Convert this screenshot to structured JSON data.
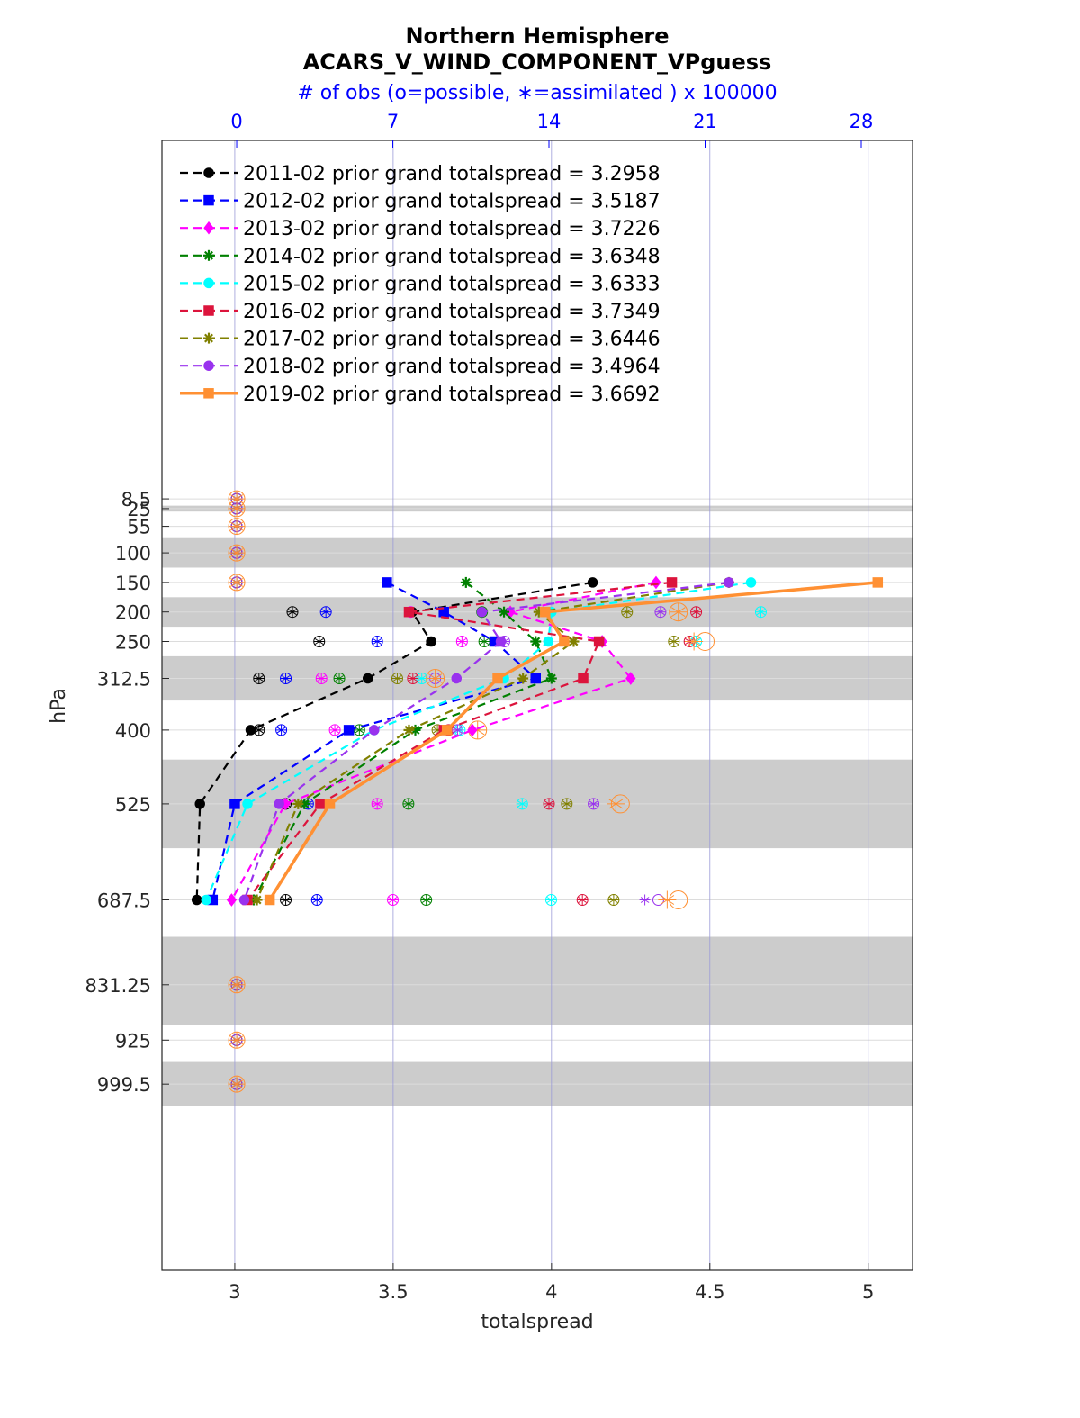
{
  "chart_data": {
    "type": "line",
    "title": "Northern Hemisphere",
    "subtitle": "ACARS_V_WIND_COMPONENT_VPguess",
    "top_axis_label": "# of obs (o=possible, ∗=assimilated ) x 100000",
    "xlabel": "totalspread",
    "ylabel": "hPa",
    "xlim": [
      2.77,
      5.14
    ],
    "xticks": [
      "3",
      "3.5",
      "4",
      "4.5",
      "5"
    ],
    "top_xlim": [
      -3.35,
      30.3
    ],
    "top_xticks": [
      "0",
      "7",
      "14",
      "21",
      "28"
    ],
    "y_reversed": true,
    "levels": [
      8.5,
      25,
      55,
      100,
      150,
      200,
      250,
      312.5,
      400,
      525,
      687.5,
      831.25,
      925,
      999.5
    ],
    "level_labels": [
      "8.5",
      "25",
      "55",
      "100",
      "150",
      "200",
      "250",
      "312.5",
      "400",
      "525",
      "687.5",
      "831.25",
      "925",
      "999.5"
    ],
    "shaded_bands": [
      [
        20,
        30
      ],
      [
        75,
        125
      ],
      [
        175,
        225
      ],
      [
        275,
        350
      ],
      [
        450,
        600
      ],
      [
        750,
        900
      ],
      [
        962,
        1037
      ]
    ],
    "grid": true,
    "legend_location": "top-left",
    "series": [
      {
        "name": "2011-02 prior grand totalspread = 3.2958",
        "color": "#000000",
        "marker": "circle",
        "levels": [
          150,
          200,
          250,
          312.5,
          400,
          525,
          687.5
        ],
        "values": [
          4.13,
          3.56,
          3.62,
          3.42,
          3.05,
          2.89,
          2.88
        ]
      },
      {
        "name": "2012-02 prior grand totalspread = 3.5187",
        "color": "#0000ff",
        "marker": "square",
        "levels": [
          150,
          200,
          250,
          312.5,
          400,
          525,
          687.5
        ],
        "values": [
          3.48,
          3.66,
          3.82,
          3.95,
          3.36,
          3.0,
          2.93
        ]
      },
      {
        "name": "2013-02 prior grand totalspread = 3.7226",
        "color": "#ff00ff",
        "marker": "diamond",
        "levels": [
          150,
          200,
          250,
          312.5,
          400,
          525,
          687.5
        ],
        "values": [
          4.33,
          3.87,
          4.16,
          4.25,
          3.75,
          3.16,
          2.99
        ]
      },
      {
        "name": "2014-02 prior grand totalspread = 3.6348",
        "color": "#008000",
        "marker": "star",
        "levels": [
          150,
          200,
          250,
          312.5,
          400,
          525,
          687.5
        ],
        "values": [
          3.73,
          3.85,
          3.95,
          4.0,
          3.57,
          3.22,
          3.06
        ]
      },
      {
        "name": "2015-02 prior grand totalspread = 3.6333",
        "color": "#00ffff",
        "marker": "circle",
        "levels": [
          150,
          200,
          250,
          312.5,
          400,
          525,
          687.5
        ],
        "values": [
          4.63,
          4.0,
          3.99,
          3.85,
          3.44,
          3.04,
          2.91
        ]
      },
      {
        "name": "2016-02 prior grand totalspread = 3.7349",
        "color": "#dc143c",
        "marker": "square",
        "levels": [
          150,
          200,
          250,
          312.5,
          400,
          525,
          687.5
        ],
        "values": [
          4.38,
          3.55,
          4.15,
          4.1,
          3.66,
          3.27,
          3.04
        ]
      },
      {
        "name": "2017-02 prior grand totalspread = 3.6446",
        "color": "#808000",
        "marker": "asterisk",
        "levels": [
          150,
          200,
          250,
          312.5,
          400,
          525,
          687.5
        ],
        "values": [
          4.56,
          3.96,
          4.07,
          3.91,
          3.55,
          3.2,
          3.07
        ]
      },
      {
        "name": "2018-02 prior grand totalspread = 3.4964",
        "color": "#9932ee",
        "marker": "circle",
        "levels": [
          150,
          200,
          250,
          312.5,
          400,
          525,
          687.5
        ],
        "values": [
          4.56,
          3.78,
          3.84,
          3.7,
          3.44,
          3.14,
          3.03
        ]
      },
      {
        "name": "2019-02 prior grand totalspread = 3.6692",
        "color": "#ff9033",
        "marker": "square",
        "levels": [
          150,
          200,
          250,
          312.5,
          400,
          525,
          687.5
        ],
        "values": [
          5.03,
          3.98,
          4.04,
          3.83,
          3.67,
          3.3,
          3.11
        ]
      }
    ],
    "obs_counts": {
      "unit_note": "top axis units (x 100000)",
      "levels_empty": [
        8.5,
        25,
        55,
        100,
        150,
        831.25,
        925,
        999.5
      ],
      "rows": [
        {
          "level": 200,
          "possible": [
            2.5,
            4.0,
            7.8,
            11.0,
            23.5,
            20.6,
            17.5,
            19.0,
            19.8
          ],
          "assimilated": [
            2.5,
            4.0,
            7.8,
            11.0,
            23.5,
            20.6,
            17.5,
            19.0,
            19.8
          ]
        },
        {
          "level": 250,
          "possible": [
            3.7,
            6.3,
            10.1,
            11.1,
            20.6,
            20.3,
            19.6,
            12.0,
            21.0
          ],
          "assimilated": [
            3.7,
            6.3,
            10.1,
            11.1,
            20.6,
            20.3,
            19.6,
            12.0,
            20.5
          ]
        },
        {
          "level": 312.5,
          "possible": [
            1.0,
            2.2,
            3.8,
            4.6,
            8.3,
            7.9,
            7.2,
            8.9,
            8.9
          ],
          "assimilated": [
            1.0,
            2.2,
            3.8,
            4.6,
            8.3,
            7.9,
            7.2,
            8.9,
            8.9
          ]
        },
        {
          "level": 400,
          "possible": [
            1.0,
            2.0,
            4.4,
            5.5,
            10.0,
            9.5,
            9.0,
            9.9,
            10.8
          ],
          "assimilated": [
            1.0,
            2.0,
            4.4,
            5.5,
            10.0,
            9.5,
            9.0,
            9.9,
            10.8
          ]
        },
        {
          "level": 525,
          "possible": [
            2.2,
            3.2,
            6.3,
            7.7,
            12.8,
            14.0,
            14.8,
            16.0,
            17.2
          ],
          "assimilated": [
            2.2,
            3.2,
            6.3,
            7.7,
            12.8,
            14.0,
            14.8,
            16.0,
            17.0
          ]
        },
        {
          "level": 687.5,
          "possible": [
            2.2,
            3.6,
            7.0,
            8.5,
            14.1,
            15.5,
            16.9,
            18.9,
            19.8
          ],
          "assimilated": [
            2.2,
            3.6,
            7.0,
            8.5,
            14.1,
            15.5,
            16.9,
            18.3,
            19.3
          ]
        }
      ]
    }
  }
}
